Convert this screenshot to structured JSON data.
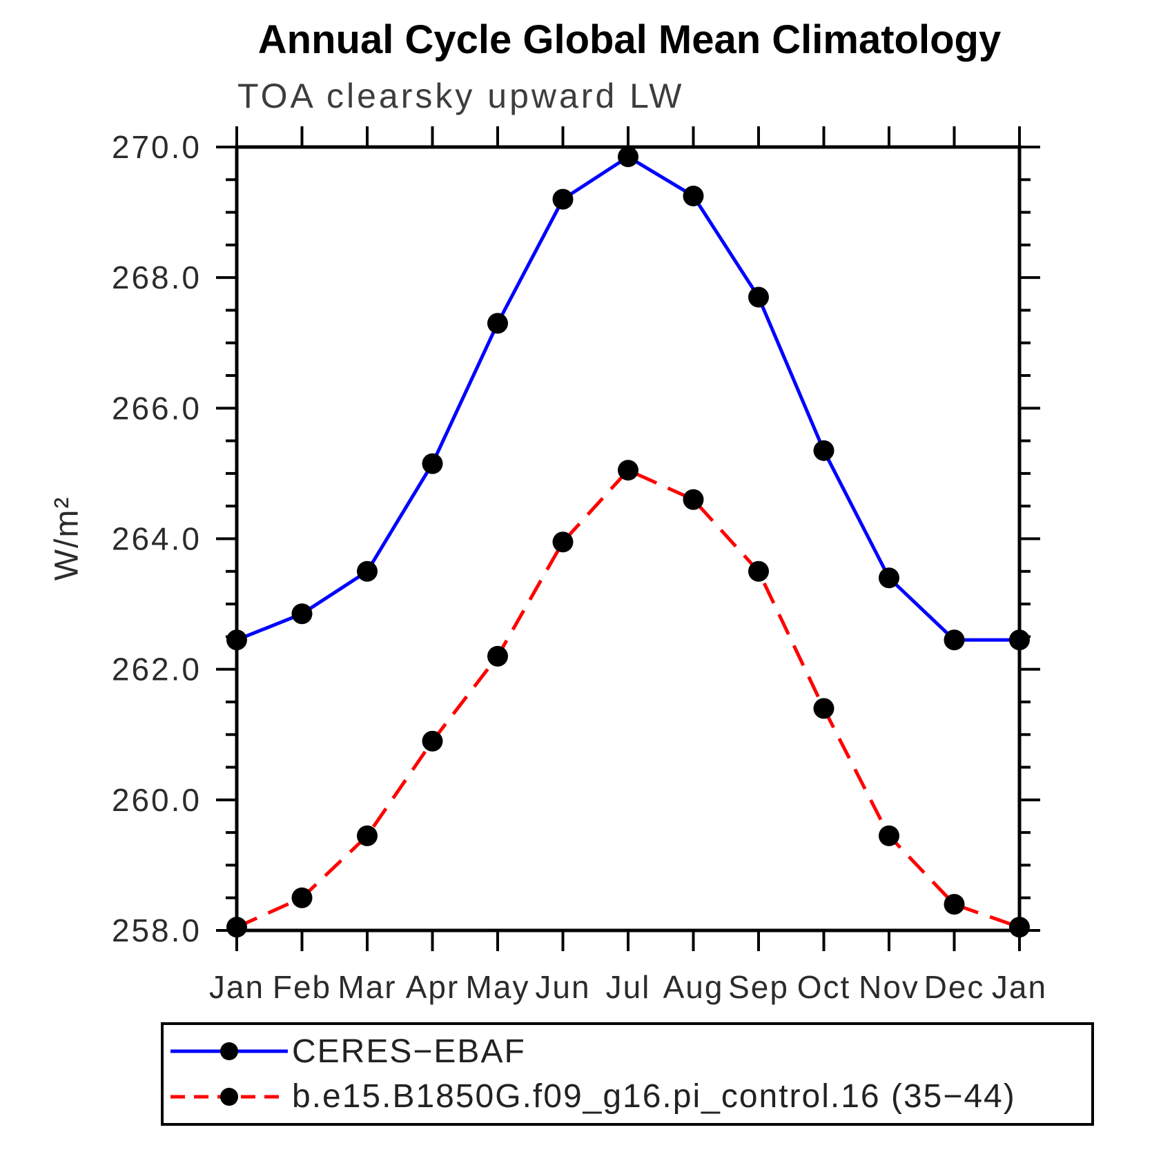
{
  "page": {
    "title": "Annual Cycle Global Mean Climatology",
    "subtitle": "TOA clearsky upward LW",
    "ylabel": "W/m²"
  },
  "chart_data": {
    "type": "line",
    "title": "Annual Cycle Global Mean Climatology",
    "subtitle": "TOA clearsky upward LW",
    "xlabel": "",
    "ylabel": "W/m²",
    "x_categories": [
      "Jan",
      "Feb",
      "Mar",
      "Apr",
      "May",
      "Jun",
      "Jul",
      "Aug",
      "Sep",
      "Oct",
      "Nov",
      "Dec",
      "Jan"
    ],
    "ylim": [
      258.0,
      270.0
    ],
    "ytick_major_step": 2.0,
    "ytick_minor_step": 0.5,
    "ytick_labels": [
      "258.0",
      "260.0",
      "262.0",
      "264.0",
      "266.0",
      "268.0",
      "270.0"
    ],
    "grid": false,
    "legend_position": "bottom",
    "axis_color": "#000000",
    "marker_color": "#000000",
    "series": [
      {
        "name": "CERES−EBAF",
        "color": "#0000ff",
        "style": "solid",
        "marker": "circle",
        "values": [
          262.45,
          262.85,
          263.5,
          265.15,
          267.3,
          269.2,
          269.85,
          269.25,
          267.7,
          265.35,
          263.4,
          262.45,
          262.45
        ]
      },
      {
        "name": "b.e15.B1850G.f09_g16.pi_control.16 (35−44)",
        "color": "#ff0000",
        "style": "dashed",
        "marker": "circle",
        "values": [
          258.05,
          258.5,
          259.45,
          260.9,
          262.2,
          263.95,
          265.05,
          264.6,
          263.5,
          261.4,
          259.45,
          258.4,
          258.05
        ]
      }
    ]
  }
}
